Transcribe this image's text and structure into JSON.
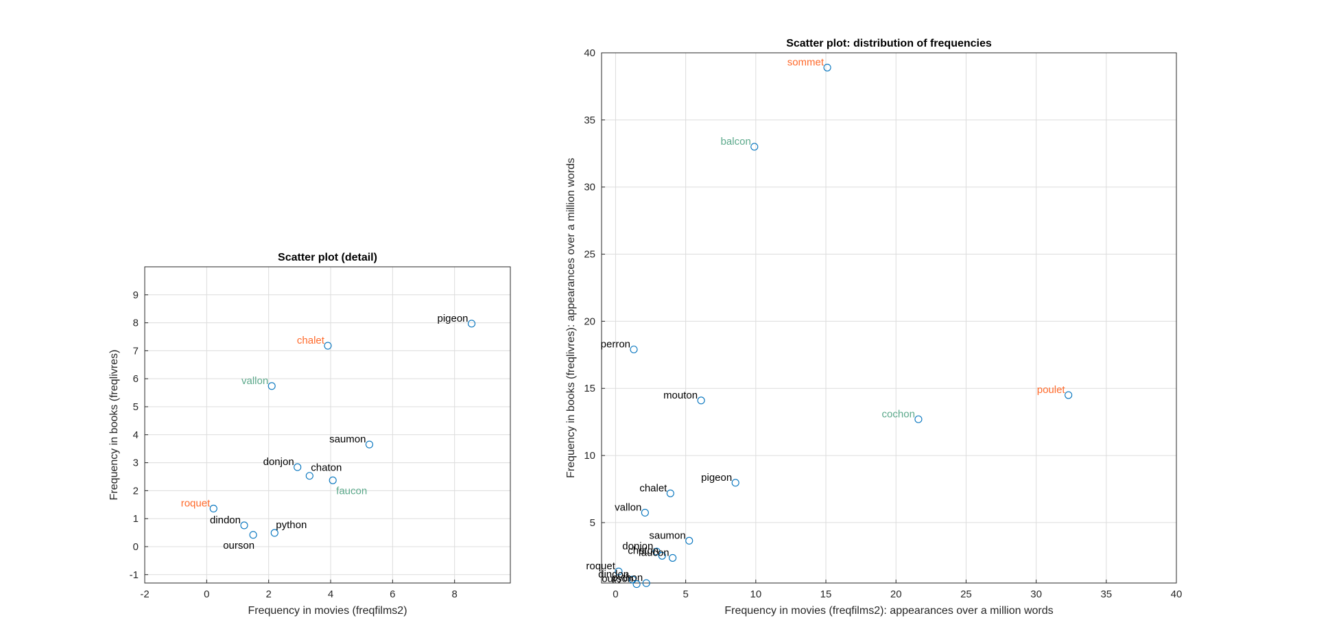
{
  "colors": {
    "marker": "#0072bd",
    "grid": "#dcdcdc",
    "axis": "#262626",
    "label_default": "#000000",
    "label_orange": "#ff6a2b",
    "label_green": "#5aa88a"
  },
  "chart_data": [
    {
      "type": "scatter",
      "title": "Scatter plot (detail)",
      "xlabel": "Frequency in movies (freqfilms2)",
      "ylabel": "Frequency in books (freqlivres)",
      "xlim": [
        -2,
        9.8
      ],
      "ylim": [
        -1.3,
        10
      ],
      "xticks": [
        -2,
        0,
        2,
        4,
        6,
        8
      ],
      "yticks": [
        -1,
        0,
        1,
        2,
        3,
        4,
        5,
        6,
        7,
        8,
        9
      ],
      "grid": true,
      "points": [
        {
          "label": "pigeon",
          "x": 8.55,
          "y": 7.97,
          "color": "default",
          "pos": "left"
        },
        {
          "label": "chalet",
          "x": 3.91,
          "y": 7.18,
          "color": "orange",
          "pos": "left"
        },
        {
          "label": "vallon",
          "x": 2.1,
          "y": 5.74,
          "color": "green",
          "pos": "left"
        },
        {
          "label": "saumon",
          "x": 5.25,
          "y": 3.65,
          "color": "default",
          "pos": "left"
        },
        {
          "label": "donjon",
          "x": 2.93,
          "y": 2.84,
          "color": "default",
          "pos": "left"
        },
        {
          "label": "chaton",
          "x": 3.32,
          "y": 2.53,
          "color": "default",
          "pos": "aboveright"
        },
        {
          "label": "faucon",
          "x": 4.07,
          "y": 2.37,
          "color": "green",
          "pos": "belowright"
        },
        {
          "label": "roquet",
          "x": 0.22,
          "y": 1.36,
          "color": "orange",
          "pos": "left"
        },
        {
          "label": "dindon",
          "x": 1.21,
          "y": 0.76,
          "color": "default",
          "pos": "left"
        },
        {
          "label": "python",
          "x": 2.19,
          "y": 0.49,
          "color": "default",
          "pos": "aboveright"
        },
        {
          "label": "ourson",
          "x": 1.5,
          "y": 0.42,
          "color": "default",
          "pos": "belowleft"
        }
      ]
    },
    {
      "type": "scatter",
      "title": "Scatter plot: distribution of frequencies",
      "xlabel": "Frequency in movies (freqfilms2): appearances over a million words",
      "ylabel": "Frequency in books (freqlivres): appearances over a million words",
      "xlim": [
        -1,
        40
      ],
      "ylim": [
        0.5,
        40
      ],
      "xticks": [
        0,
        5,
        10,
        15,
        20,
        25,
        30,
        35,
        40
      ],
      "yticks": [
        5,
        10,
        15,
        20,
        25,
        30,
        35,
        40
      ],
      "grid": true,
      "points": [
        {
          "label": "sommet",
          "x": 15.1,
          "y": 38.9,
          "color": "orange",
          "pos": "left"
        },
        {
          "label": "balcon",
          "x": 9.9,
          "y": 33.0,
          "color": "green",
          "pos": "left"
        },
        {
          "label": "perron",
          "x": 1.3,
          "y": 17.9,
          "color": "default",
          "pos": "left"
        },
        {
          "label": "mouton",
          "x": 6.1,
          "y": 14.1,
          "color": "default",
          "pos": "left"
        },
        {
          "label": "poulet",
          "x": 32.3,
          "y": 14.5,
          "color": "orange",
          "pos": "left"
        },
        {
          "label": "cochon",
          "x": 21.6,
          "y": 12.7,
          "color": "green",
          "pos": "left"
        },
        {
          "label": "pigeon",
          "x": 8.55,
          "y": 7.97,
          "color": "default",
          "pos": "left"
        },
        {
          "label": "chalet",
          "x": 3.91,
          "y": 7.18,
          "color": "default",
          "pos": "left"
        },
        {
          "label": "vallon",
          "x": 2.1,
          "y": 5.74,
          "color": "default",
          "pos": "left"
        },
        {
          "label": "saumon",
          "x": 5.25,
          "y": 3.65,
          "color": "default",
          "pos": "left"
        },
        {
          "label": "donjon",
          "x": 2.93,
          "y": 2.84,
          "color": "default",
          "pos": "left"
        },
        {
          "label": "chaton",
          "x": 3.32,
          "y": 2.53,
          "color": "default",
          "pos": "left"
        },
        {
          "label": "faucon",
          "x": 4.07,
          "y": 2.37,
          "color": "default",
          "pos": "left"
        },
        {
          "label": "roquet",
          "x": 0.22,
          "y": 1.36,
          "color": "default",
          "pos": "left"
        },
        {
          "label": "dindon",
          "x": 1.21,
          "y": 0.76,
          "color": "default",
          "pos": "left"
        },
        {
          "label": "python",
          "x": 2.19,
          "y": 0.49,
          "color": "default",
          "pos": "left"
        },
        {
          "label": "ourson",
          "x": 1.5,
          "y": 0.42,
          "color": "default",
          "pos": "left"
        }
      ]
    }
  ]
}
